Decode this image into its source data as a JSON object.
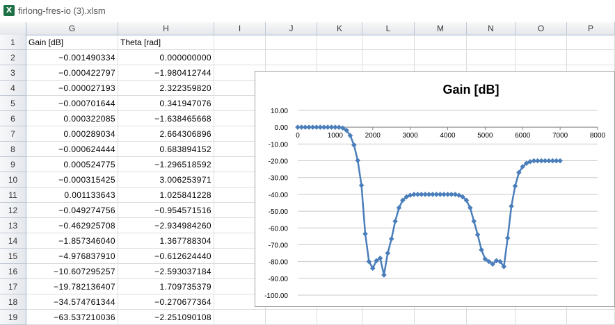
{
  "window": {
    "title": "firlong-fres-io (3).xlsm",
    "icon": "excel-icon"
  },
  "columns": [
    "G",
    "H",
    "I",
    "J",
    "K",
    "L",
    "M",
    "N",
    "O",
    "P"
  ],
  "rows": [
    {
      "n": "1",
      "g": "Gain [dB]",
      "h": "Theta [rad]"
    },
    {
      "n": "2",
      "g": "−0.001490334",
      "h": "0.000000000"
    },
    {
      "n": "3",
      "g": "−0.000422797",
      "h": "−1.980412744"
    },
    {
      "n": "4",
      "g": "−0.000027193",
      "h": "2.322359820"
    },
    {
      "n": "5",
      "g": "−0.000701644",
      "h": "0.341947076"
    },
    {
      "n": "6",
      "g": "0.000322085",
      "h": "−1.638465668"
    },
    {
      "n": "7",
      "g": "0.000289034",
      "h": "2.664306896"
    },
    {
      "n": "8",
      "g": "−0.000624444",
      "h": "0.683894152"
    },
    {
      "n": "9",
      "g": "0.000524775",
      "h": "−1.296518592"
    },
    {
      "n": "10",
      "g": "−0.000315425",
      "h": "3.006253971"
    },
    {
      "n": "11",
      "g": "0.001133643",
      "h": "1.025841228"
    },
    {
      "n": "12",
      "g": "−0.049274756",
      "h": "−0.954571516"
    },
    {
      "n": "13",
      "g": "−0.462925708",
      "h": "−2.934984260"
    },
    {
      "n": "14",
      "g": "−1.857346040",
      "h": "1.367788304"
    },
    {
      "n": "15",
      "g": "−4.976837910",
      "h": "−0.612624440"
    },
    {
      "n": "16",
      "g": "−10.607295257",
      "h": "−2.593037184"
    },
    {
      "n": "17",
      "g": "−19.782136407",
      "h": "1.709735379"
    },
    {
      "n": "18",
      "g": "−34.574761344",
      "h": "−0.270677364"
    },
    {
      "n": "19",
      "g": "−63.537210036",
      "h": "−2.251090108"
    }
  ],
  "chart_data": {
    "type": "scatter",
    "title": "Gain [dB]",
    "xlim": [
      0,
      8000
    ],
    "ylim": [
      -100,
      10
    ],
    "xticks": [
      "0",
      "1000",
      "2000",
      "3000",
      "4000",
      "5000",
      "6000",
      "7000",
      "8000"
    ],
    "yticks": [
      "10.00",
      "0.00",
      "-10.00",
      "-20.00",
      "-30.00",
      "-40.00",
      "-50.00",
      "-60.00",
      "-70.00",
      "-80.00",
      "-90.00",
      "-100.00"
    ],
    "grid": true,
    "series_color": "#4a7ebb",
    "x": [
      0,
      100,
      200,
      300,
      400,
      500,
      600,
      700,
      800,
      900,
      1000,
      1100,
      1200,
      1300,
      1400,
      1500,
      1600,
      1700,
      1800,
      1900,
      2000,
      2100,
      2200,
      2300,
      2400,
      2500,
      2600,
      2700,
      2800,
      2900,
      3000,
      3100,
      3200,
      3300,
      3400,
      3500,
      3600,
      3700,
      3800,
      3900,
      4000,
      4100,
      4200,
      4300,
      4400,
      4500,
      4600,
      4700,
      4800,
      4900,
      5000,
      5100,
      5200,
      5300,
      5400,
      5500,
      5600,
      5700,
      5800,
      5900,
      6000,
      6100,
      6200,
      6300,
      6400,
      6500,
      6600,
      6700,
      6800,
      6900,
      7000
    ],
    "y": [
      0,
      0,
      0,
      0,
      0,
      0,
      0,
      0,
      0,
      0,
      0,
      -0.05,
      -0.46,
      -1.86,
      -4.98,
      -10.6,
      -19.8,
      -34.6,
      -63.5,
      -80,
      -84,
      -79.5,
      -78,
      -88,
      -75,
      -66.5,
      -56,
      -48,
      -43.5,
      -41.5,
      -40.5,
      -40,
      -40,
      -40,
      -40,
      -40,
      -40,
      -40,
      -40,
      -40,
      -40,
      -40,
      -40,
      -40.5,
      -41.5,
      -43.5,
      -48,
      -56,
      -64,
      -73,
      -78.5,
      -80,
      -81.5,
      -79.5,
      -80,
      -83,
      -66,
      -47,
      -35,
      -27,
      -23.5,
      -21.5,
      -20.5,
      -20,
      -20,
      -20,
      -20,
      -20,
      -20,
      -20,
      -20
    ]
  }
}
